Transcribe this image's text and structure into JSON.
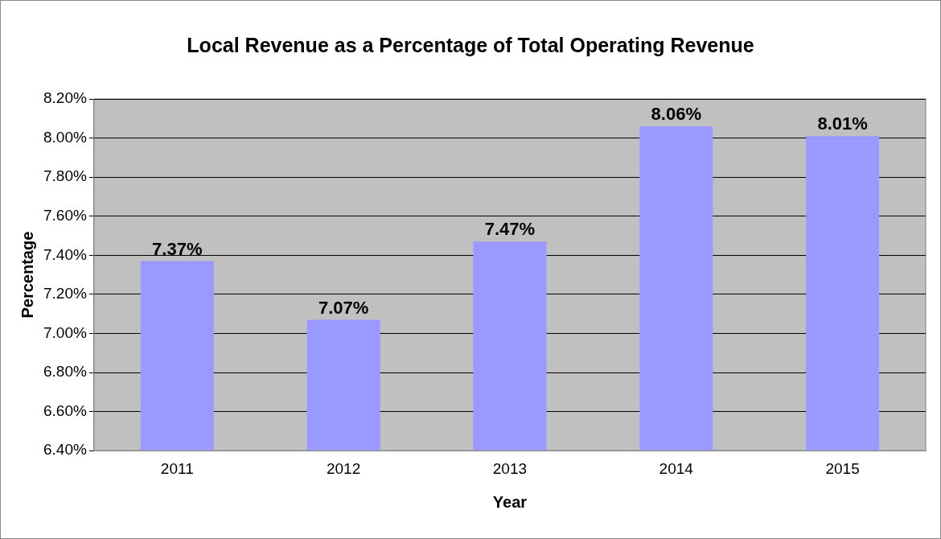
{
  "chart_data": {
    "type": "bar",
    "title": "Local Revenue as a Percentage of Total Operating Revenue",
    "xlabel": "Year",
    "ylabel": "Percentage",
    "categories": [
      "2011",
      "2012",
      "2013",
      "2014",
      "2015"
    ],
    "values": [
      7.37,
      7.07,
      7.47,
      8.06,
      8.01
    ],
    "value_labels": [
      "7.37%",
      "7.07%",
      "7.47%",
      "8.06%",
      "8.01%"
    ],
    "color": "#9999ff",
    "ylim": [
      6.4,
      8.2
    ],
    "yticks": [
      {
        "value": 6.4,
        "label": "6.40%"
      },
      {
        "value": 6.6,
        "label": "6.60%"
      },
      {
        "value": 6.8,
        "label": "6.80%"
      },
      {
        "value": 7.0,
        "label": "7.00%"
      },
      {
        "value": 7.2,
        "label": "7.20%"
      },
      {
        "value": 7.4,
        "label": "7.40%"
      },
      {
        "value": 7.6,
        "label": "7.60%"
      },
      {
        "value": 7.8,
        "label": "7.80%"
      },
      {
        "value": 8.0,
        "label": "8.00%"
      },
      {
        "value": 8.2,
        "label": "8.20%"
      }
    ],
    "grid": "y"
  }
}
